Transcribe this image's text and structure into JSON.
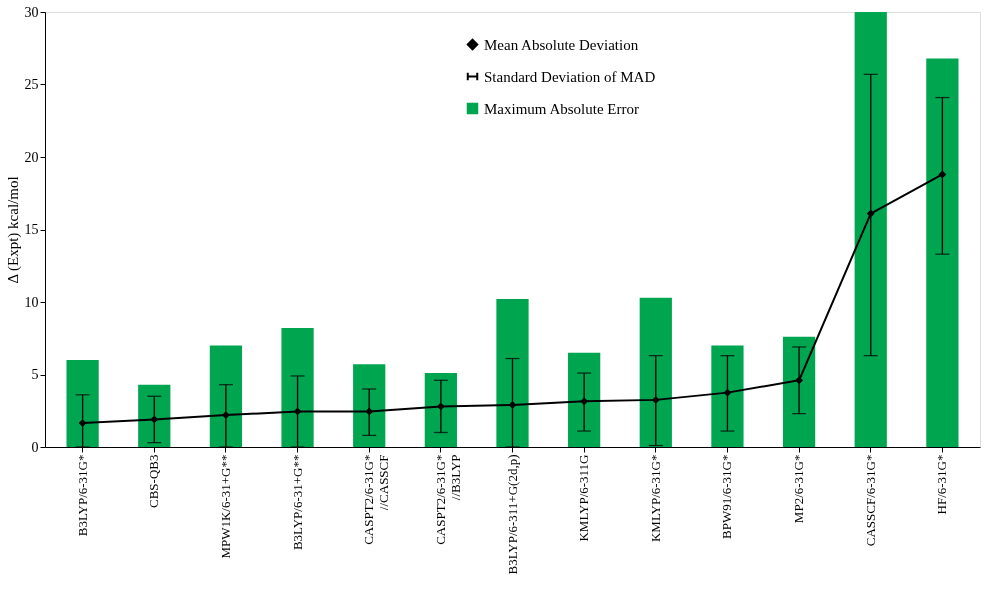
{
  "chart_data": {
    "type": "bar",
    "ylabel": "Δ (Expt) kcal/mol",
    "categories": [
      "B3LYP/6-31G*",
      "CBS-QB3",
      "MPW1K/6-31+G**",
      "B3LYP/6-31+G**",
      "CASPT2/6-31G*\n//CASSCF",
      "CASPT2/6-31G*\n//B3LYP",
      "B3LYP/6-311+G(2d,p)",
      "KMLYP/6-311G",
      "KMLYP/6-31G*",
      "BPW91/6-31G*",
      "MP2/6-31G*",
      "CASSCF/6-31G*",
      "HF/6-31G*"
    ],
    "series": [
      {
        "name": "Maximum Absolute Error",
        "color": "#00a550",
        "values": [
          6.0,
          4.3,
          7.0,
          8.2,
          5.7,
          5.1,
          10.2,
          6.5,
          10.3,
          7.0,
          7.6,
          30,
          26.8
        ]
      },
      {
        "name": "Mean Absolute Deviation",
        "type": "line",
        "color": "#000000",
        "marker": "diamond",
        "values": [
          1.65,
          1.9,
          2.2,
          2.45,
          2.45,
          2.8,
          2.9,
          3.15,
          3.25,
          3.75,
          4.6,
          16.1,
          18.8
        ],
        "errors": [
          [
            0,
            3.6
          ],
          [
            0.3,
            3.5
          ],
          [
            0,
            4.3
          ],
          [
            0,
            4.9
          ],
          [
            0.8,
            4.0
          ],
          [
            1.0,
            4.6
          ],
          [
            0,
            6.1
          ],
          [
            1.1,
            5.1
          ],
          [
            0.1,
            6.3
          ],
          [
            1.1,
            6.3
          ],
          [
            2.3,
            6.9
          ],
          [
            6.3,
            25.7
          ],
          [
            13.3,
            24.1
          ]
        ]
      }
    ],
    "annotations": [
      "Standard Deviation of MAD"
    ],
    "ylim": [
      0,
      30
    ],
    "yticks": [
      0,
      5,
      10,
      15,
      20,
      25,
      30
    ],
    "grid": false,
    "legend": "top"
  }
}
